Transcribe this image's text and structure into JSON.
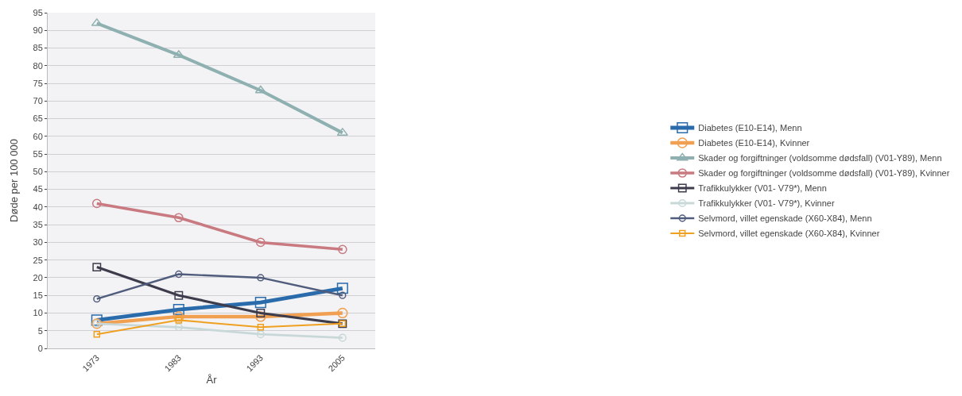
{
  "chart_data": {
    "type": "line",
    "xlabel": "År",
    "ylabel": "Døde per 100 000",
    "categories": [
      "1973",
      "1983",
      "1993",
      "2005"
    ],
    "series": [
      {
        "name": "Diabetes (E10-E14), Menn",
        "color": "#2a6bab",
        "marker": "square",
        "values": [
          8,
          11,
          13,
          17
        ]
      },
      {
        "name": "Diabetes (E10-E14), Kvinner",
        "color": "#f0a050",
        "marker": "circle",
        "values": [
          7,
          9,
          9,
          10
        ]
      },
      {
        "name": "Skader og forgiftninger (voldsomme dødsfall) (V01-Y89), Menn",
        "color": "#8fb0b0",
        "marker": "triangle",
        "values": [
          92,
          83,
          73,
          61
        ]
      },
      {
        "name": "Skader og forgiftninger (voldsomme dødsfall) (V01-Y89), Kvinner",
        "color": "#c87a80",
        "marker": "circle",
        "values": [
          41,
          37,
          30,
          28
        ]
      },
      {
        "name": "Trafikkulykker (V01- V79*), Menn",
        "color": "#3c3c4c",
        "marker": "square",
        "values": [
          23,
          15,
          10,
          7
        ]
      },
      {
        "name": "Trafikkulykker (V01- V79*), Kvinner",
        "color": "#c8d8d8",
        "marker": "circle",
        "values": [
          7,
          6,
          4,
          3
        ]
      },
      {
        "name": "Selvmord, villet egenskade (X60-X84), Menn",
        "color": "#505c7c",
        "marker": "circle",
        "values": [
          14,
          21,
          20,
          15
        ]
      },
      {
        "name": "Selvmord, villet egenskade (X60-X84), Kvinner",
        "color": "#f0a020",
        "marker": "square",
        "values": [
          4,
          8,
          6,
          7
        ]
      }
    ],
    "ylim": [
      0,
      95
    ],
    "yticks": [
      0,
      5,
      10,
      15,
      20,
      25,
      30,
      35,
      40,
      45,
      50,
      55,
      60,
      65,
      70,
      75,
      80,
      85,
      90,
      95
    ],
    "grid": "y",
    "legend": "right"
  }
}
